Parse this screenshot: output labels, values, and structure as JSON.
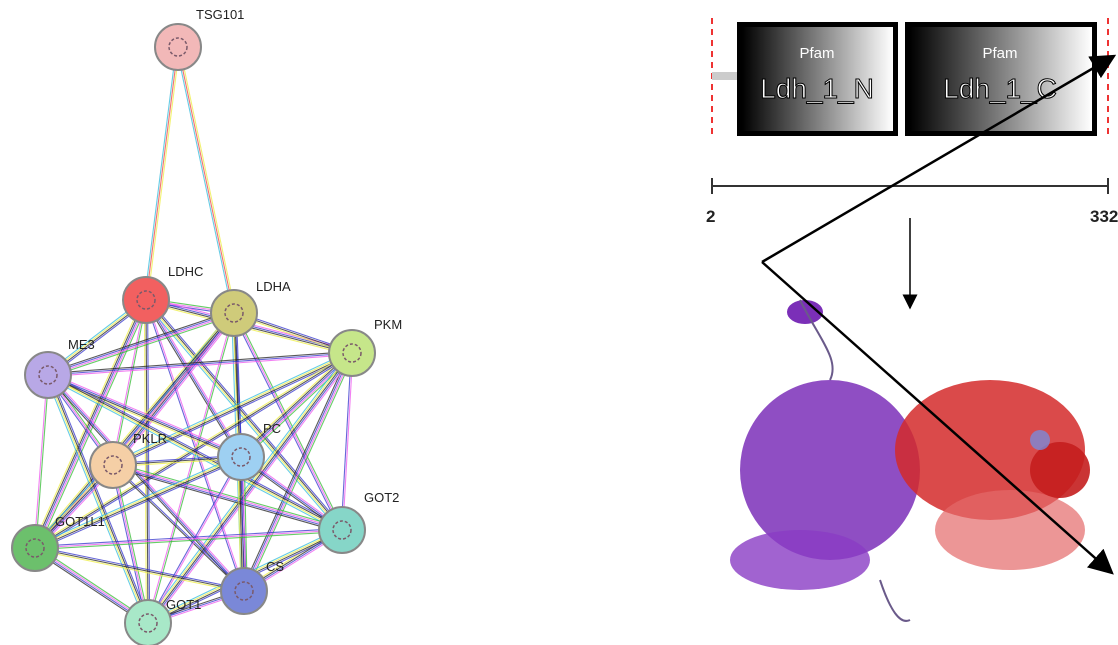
{
  "network": {
    "nodes": [
      {
        "label": "TSG101"
      },
      {
        "label": "LDHC"
      },
      {
        "label": "LDHA"
      },
      {
        "label": "PKM"
      },
      {
        "label": "ME3"
      },
      {
        "label": "PKLR"
      },
      {
        "label": "PC"
      },
      {
        "label": "GOT2"
      },
      {
        "label": "GOT1L1"
      },
      {
        "label": "CS"
      },
      {
        "label": "GOT1"
      }
    ]
  },
  "domains": {
    "items": [
      {
        "source": "Pfam",
        "name": "Ldh_1_N"
      },
      {
        "source": "Pfam",
        "name": "Ldh_1_C"
      }
    ],
    "scale": {
      "start": "2",
      "end": "332"
    }
  }
}
